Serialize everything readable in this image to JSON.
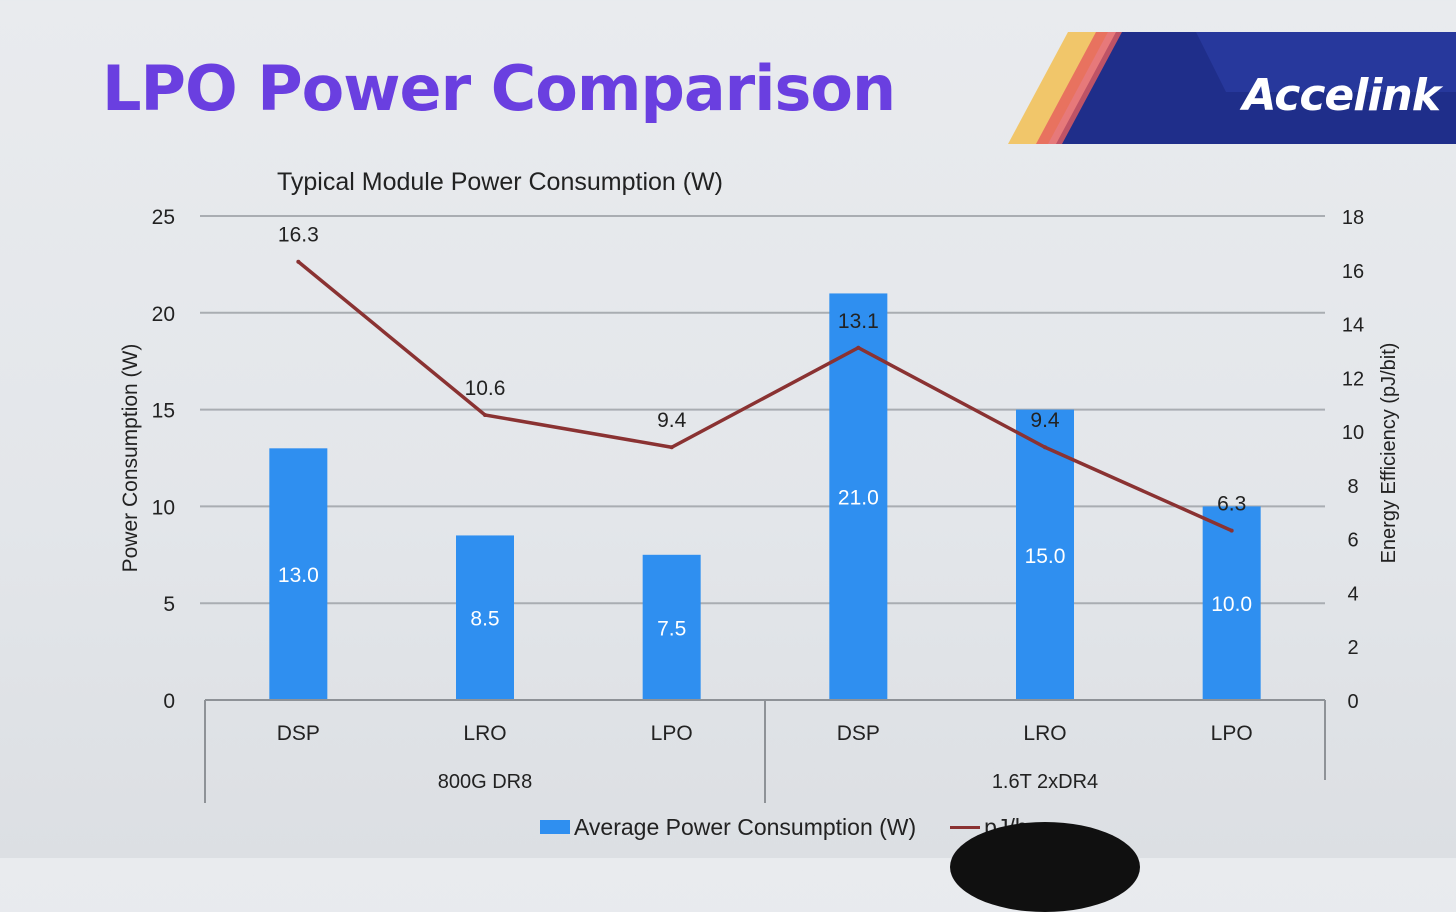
{
  "slide": {
    "title": "LPO Power Comparison",
    "logo_text": "Accelink"
  },
  "colors": {
    "title": "#6a3fe0",
    "bar": "#2f8ff0",
    "line": "#8a3232"
  },
  "chart_data": {
    "type": "bar",
    "title": "Typical Module Power Consumption (W)",
    "ylabel": "Power Consumption (W)",
    "y2label": "Energy Efficiency (pJ/bit)",
    "ylim": [
      0,
      25
    ],
    "yticks": [
      "0",
      "5",
      "10",
      "15",
      "20",
      "25"
    ],
    "y2lim": [
      0,
      18
    ],
    "y2ticks": [
      "0",
      "2",
      "4",
      "6",
      "8",
      "10",
      "12",
      "14",
      "16",
      "18"
    ],
    "grid": true,
    "legend": "bottom",
    "categories": [
      "DSP",
      "LRO",
      "LPO",
      "DSP",
      "LRO",
      "LPO"
    ],
    "groups": [
      {
        "label": "800G DR8",
        "span": 3
      },
      {
        "label": "1.6T 2xDR4",
        "span": 3
      }
    ],
    "series": [
      {
        "name": "Average Power Consumption (W)",
        "kind": "bar",
        "axis": "left",
        "values": [
          13.0,
          8.5,
          7.5,
          21.0,
          15.0,
          10.0
        ],
        "labels": [
          "13.0",
          "8.5",
          "7.5",
          "21.0",
          "15.0",
          "10.0"
        ]
      },
      {
        "name": "pJ/bit",
        "kind": "line",
        "axis": "right",
        "values": [
          16.3,
          10.6,
          9.4,
          13.1,
          9.4,
          6.3
        ],
        "labels": [
          "16.3",
          "10.6",
          "9.4",
          "13.1",
          "9.4",
          "6.3"
        ]
      }
    ]
  }
}
